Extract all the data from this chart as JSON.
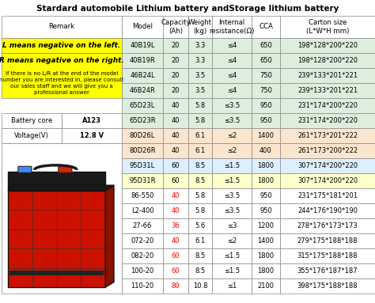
{
  "title": "Stardard automobile Lithium battery andStorage lithium battery",
  "headers": [
    "Model",
    "Capacity\n(Ah)",
    "Weight\n(kg)",
    "Internal\nresistance(Ω)",
    "CCA",
    "Carton size\n(L*W*H mm)"
  ],
  "rows": [
    [
      "40B19L",
      "20",
      "3.3",
      "≤4",
      "650",
      "198*128*200*220"
    ],
    [
      "40B19R",
      "20",
      "3.3",
      "≤4",
      "650",
      "198*128*200*220"
    ],
    [
      "46B24L",
      "20",
      "3.5",
      "≤4",
      "750",
      "239*133*201*221"
    ],
    [
      "46B24R",
      "20",
      "3.5",
      "≤4",
      "750",
      "239*133*201*221"
    ],
    [
      "65D23L",
      "40",
      "5.8",
      "≤3.5",
      "950",
      "231*174*200*220"
    ],
    [
      "65D23R",
      "40",
      "5.8",
      "≤3.5",
      "950",
      "231*174*200*220"
    ],
    [
      "80D26L",
      "40",
      "6.1",
      "≤2",
      "1400",
      "261*173*201*222"
    ],
    [
      "80D26R",
      "40",
      "6.1",
      "≤2",
      "400",
      "261*173*200*222"
    ],
    [
      "95D31L",
      "60",
      "8.5",
      "≤1.5",
      "1800",
      "307*174*200*220"
    ],
    [
      "95D31R",
      "60",
      "8.5",
      "≤1.5",
      "1800",
      "307*174*200*220"
    ],
    [
      "86-550",
      "40",
      "5.8",
      "≤3.5",
      "950",
      "231*175*181*201"
    ],
    [
      "L2-400",
      "40",
      "5.8",
      "≤3.5",
      "950",
      "244*176*190*190"
    ],
    [
      "27-66",
      "36",
      "5.6",
      "≤3",
      "1200",
      "278*176*173*173"
    ],
    [
      "072-20",
      "40",
      "6.1",
      "≤2",
      "1400",
      "279*175*188*188"
    ],
    [
      "082-20",
      "60",
      "8.5",
      "≤1.5",
      "1800",
      "315*175*188*188"
    ],
    [
      "100-20",
      "60",
      "8.5",
      "≤1.5",
      "1800",
      "355*176*187*187"
    ],
    [
      "110-20",
      "80",
      "10.8",
      "≤1",
      "2100",
      "398*175*188*188"
    ]
  ],
  "red_cap_rows": [
    10,
    11,
    12,
    13,
    14,
    15,
    16
  ],
  "row_colors": [
    "#ddeedd",
    "#ddeedd",
    "#ddeedd",
    "#ddeedd",
    "#ddeedd",
    "#ddeedd",
    "#fce5cd",
    "#fce5cd",
    "#ddeeff",
    "#ffffcc",
    "#ffffff",
    "#ffffff",
    "#ffffff",
    "#ffffff",
    "#ffffff",
    "#ffffff",
    "#ffffff"
  ],
  "title_fs": 7.5,
  "hdr_fs": 6.2,
  "cell_fs": 6.0,
  "remark_fs": 5.8,
  "fig_w": 4.74,
  "fig_h": 3.83,
  "dpi": 100
}
